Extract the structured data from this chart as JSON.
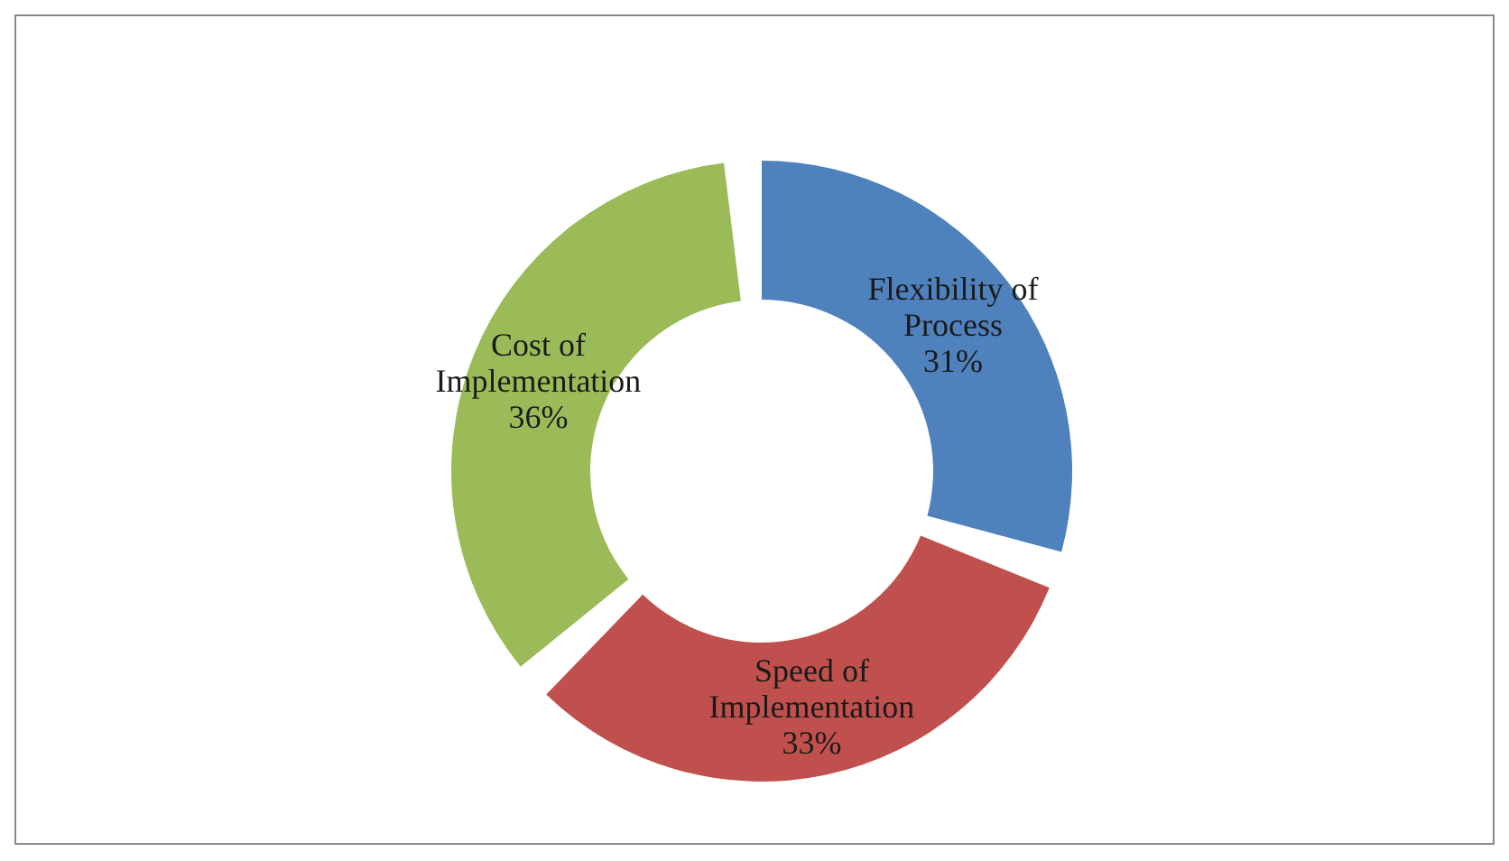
{
  "chart_data": {
    "type": "donut",
    "categories": [
      "Flexibility of Process",
      "Speed of Implementation",
      "Cost of Implementation"
    ],
    "values": [
      31,
      33,
      36
    ],
    "colors": [
      "#4f81bd",
      "#c0504d",
      "#9bbb59"
    ],
    "value_labels": [
      "31%",
      "33%",
      "36%"
    ],
    "legend": false
  }
}
